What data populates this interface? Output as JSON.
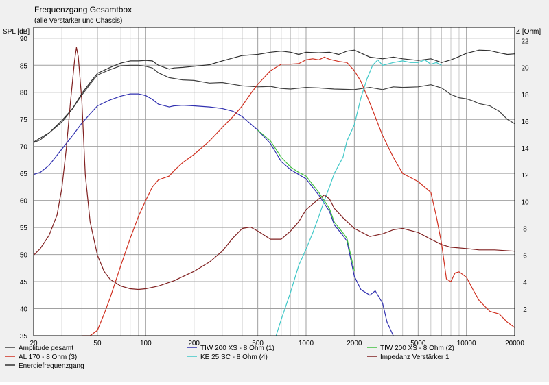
{
  "chart_data": {
    "type": "line",
    "title": "Frequenzgang Gesamtbox",
    "subtitle": "(alle Verstärker und Chassis)",
    "ylabel_left": "SPL [dB]",
    "ylabel_right": "Z [Ohm]",
    "x_scale": "log",
    "xlim": [
      20,
      20000
    ],
    "ylim_left": [
      35,
      92
    ],
    "ylim_right": [
      0,
      23
    ],
    "x_ticks": [
      20,
      50,
      100,
      200,
      500,
      1000,
      2000,
      5000,
      10000,
      20000
    ],
    "x_tick_labels": [
      "20",
      "50",
      "100",
      "200",
      "500",
      "1000",
      "2000",
      "5000",
      "10000",
      "20000"
    ],
    "y_left_ticks": [
      35,
      40,
      45,
      50,
      55,
      60,
      65,
      70,
      75,
      80,
      85,
      90
    ],
    "y_right_ticks": [
      2,
      4,
      6,
      8,
      10,
      12,
      14,
      16,
      18,
      20,
      22
    ],
    "grid": true,
    "legend_position": "bottom",
    "series": [
      {
        "name": "Amplitude gesamt",
        "color": "#404040",
        "axis": "left",
        "points": [
          [
            20,
            70.7
          ],
          [
            22,
            71.2
          ],
          [
            25,
            72.5
          ],
          [
            30,
            74.8
          ],
          [
            35,
            77
          ],
          [
            40,
            79.5
          ],
          [
            45,
            81.5
          ],
          [
            50,
            83.2
          ],
          [
            60,
            84.2
          ],
          [
            70,
            84.9
          ],
          [
            80,
            85
          ],
          [
            90,
            85
          ],
          [
            100,
            84.8
          ],
          [
            110,
            84.5
          ],
          [
            120,
            83.6
          ],
          [
            140,
            82.7
          ],
          [
            170,
            82.3
          ],
          [
            200,
            82.2
          ],
          [
            250,
            81.7
          ],
          [
            300,
            81.8
          ],
          [
            400,
            81.2
          ],
          [
            500,
            81
          ],
          [
            600,
            81.1
          ],
          [
            700,
            80.7
          ],
          [
            800,
            80.6
          ],
          [
            1000,
            80.9
          ],
          [
            1200,
            80.8
          ],
          [
            1500,
            80.6
          ],
          [
            2000,
            80.5
          ],
          [
            2500,
            80.9
          ],
          [
            3000,
            80.5
          ],
          [
            3500,
            81
          ],
          [
            4000,
            80.9
          ],
          [
            5000,
            81
          ],
          [
            6000,
            81.4
          ],
          [
            7000,
            80.8
          ],
          [
            8000,
            79.6
          ],
          [
            9000,
            79
          ],
          [
            10000,
            78.8
          ],
          [
            11000,
            78.4
          ],
          [
            12000,
            77.9
          ],
          [
            14000,
            77.5
          ],
          [
            16000,
            76.5
          ],
          [
            18000,
            75
          ],
          [
            20000,
            74.2
          ]
        ]
      },
      {
        "name": "TIW 200 XS - 8 Ohm (1)",
        "color": "#3030b0",
        "axis": "left",
        "points": [
          [
            20,
            64.8
          ],
          [
            22,
            65.2
          ],
          [
            25,
            66.5
          ],
          [
            30,
            69.5
          ],
          [
            35,
            72
          ],
          [
            40,
            74.3
          ],
          [
            45,
            76
          ],
          [
            50,
            77.5
          ],
          [
            60,
            78.6
          ],
          [
            70,
            79.3
          ],
          [
            80,
            79.7
          ],
          [
            90,
            79.7
          ],
          [
            100,
            79.4
          ],
          [
            110,
            78.7
          ],
          [
            120,
            77.8
          ],
          [
            140,
            77.3
          ],
          [
            150,
            77.5
          ],
          [
            170,
            77.6
          ],
          [
            200,
            77.5
          ],
          [
            250,
            77.3
          ],
          [
            300,
            77
          ],
          [
            350,
            76.5
          ],
          [
            400,
            75.5
          ],
          [
            500,
            73
          ],
          [
            600,
            70.5
          ],
          [
            700,
            67.2
          ],
          [
            800,
            65.7
          ],
          [
            900,
            64.8
          ],
          [
            1000,
            64
          ],
          [
            1200,
            61
          ],
          [
            1400,
            58
          ],
          [
            1500,
            55.5
          ],
          [
            1700,
            53.5
          ],
          [
            1800,
            52.5
          ],
          [
            2000,
            46
          ],
          [
            2200,
            43.5
          ],
          [
            2500,
            42.5
          ],
          [
            2700,
            43.3
          ],
          [
            3000,
            41
          ],
          [
            3200,
            37.5
          ],
          [
            3500,
            35
          ]
        ]
      },
      {
        "name": "AL 170 - 8 Ohm (3)",
        "color": "#d03020",
        "axis": "left",
        "points": [
          [
            40,
            35
          ],
          [
            45,
            35
          ],
          [
            50,
            36
          ],
          [
            55,
            39
          ],
          [
            60,
            42
          ],
          [
            70,
            48
          ],
          [
            80,
            53
          ],
          [
            90,
            57
          ],
          [
            100,
            60
          ],
          [
            110,
            62.5
          ],
          [
            120,
            63.8
          ],
          [
            140,
            64.5
          ],
          [
            150,
            65.5
          ],
          [
            170,
            67
          ],
          [
            200,
            68.5
          ],
          [
            250,
            71
          ],
          [
            300,
            73.5
          ],
          [
            350,
            75.5
          ],
          [
            400,
            77.5
          ],
          [
            450,
            79.7
          ],
          [
            500,
            81.5
          ],
          [
            600,
            84
          ],
          [
            700,
            85.2
          ],
          [
            800,
            85.2
          ],
          [
            900,
            85.3
          ],
          [
            1000,
            86
          ],
          [
            1100,
            86.2
          ],
          [
            1200,
            86
          ],
          [
            1300,
            86.5
          ],
          [
            1400,
            86.1
          ],
          [
            1600,
            85.7
          ],
          [
            1800,
            85.5
          ],
          [
            2000,
            84
          ],
          [
            2200,
            82
          ],
          [
            2500,
            78
          ],
          [
            3000,
            72
          ],
          [
            3500,
            68
          ],
          [
            4000,
            65
          ],
          [
            5000,
            63.5
          ],
          [
            6000,
            61.5
          ],
          [
            6500,
            57
          ],
          [
            7000,
            52
          ],
          [
            7500,
            45.5
          ],
          [
            8000,
            45
          ],
          [
            8500,
            46.6
          ],
          [
            9000,
            46.8
          ],
          [
            10000,
            45.8
          ],
          [
            11000,
            43.5
          ],
          [
            12000,
            41.5
          ],
          [
            14000,
            39.5
          ],
          [
            16000,
            39
          ],
          [
            18000,
            37.5
          ],
          [
            20000,
            36.5
          ]
        ]
      },
      {
        "name": "KE 25 SC - 8 Ohm   (4)",
        "color": "#40c8c8",
        "axis": "left",
        "points": [
          [
            650,
            35
          ],
          [
            700,
            38
          ],
          [
            800,
            43
          ],
          [
            900,
            48
          ],
          [
            1000,
            51
          ],
          [
            1100,
            54
          ],
          [
            1200,
            57
          ],
          [
            1300,
            60
          ],
          [
            1400,
            62.5
          ],
          [
            1500,
            65
          ],
          [
            1700,
            68
          ],
          [
            1800,
            71
          ],
          [
            2000,
            74
          ],
          [
            2200,
            79
          ],
          [
            2400,
            82.5
          ],
          [
            2600,
            85
          ],
          [
            2800,
            86
          ],
          [
            3000,
            85
          ],
          [
            3500,
            85.5
          ],
          [
            4000,
            85.8
          ],
          [
            4500,
            85.5
          ],
          [
            5000,
            85.5
          ],
          [
            5500,
            86
          ],
          [
            6000,
            85.2
          ],
          [
            6500,
            85.5
          ],
          [
            7000,
            85
          ]
        ]
      },
      {
        "name": "TIW 200 XS - 8 Ohm (2)",
        "color": "#40c040",
        "axis": "left",
        "points": [
          [
            500,
            73
          ],
          [
            600,
            71
          ],
          [
            700,
            68
          ],
          [
            800,
            66.2
          ],
          [
            900,
            65.2
          ],
          [
            1000,
            64.5
          ],
          [
            1200,
            61.5
          ],
          [
            1400,
            58.5
          ],
          [
            1500,
            56
          ],
          [
            1700,
            54
          ],
          [
            1800,
            53
          ],
          [
            2000,
            47
          ]
        ]
      },
      {
        "name": "Impedanz Verstärker 1",
        "color": "#802020",
        "axis": "right",
        "points": [
          [
            20,
            6
          ],
          [
            22,
            6.5
          ],
          [
            25,
            7.5
          ],
          [
            28,
            9
          ],
          [
            30,
            11
          ],
          [
            32,
            14
          ],
          [
            34,
            17.5
          ],
          [
            36,
            20.5
          ],
          [
            37,
            21.5
          ],
          [
            38,
            20.8
          ],
          [
            40,
            17.5
          ],
          [
            42,
            12
          ],
          [
            45,
            8.5
          ],
          [
            50,
            6
          ],
          [
            55,
            4.8
          ],
          [
            60,
            4.2
          ],
          [
            70,
            3.7
          ],
          [
            80,
            3.5
          ],
          [
            90,
            3.45
          ],
          [
            100,
            3.5
          ],
          [
            120,
            3.7
          ],
          [
            150,
            4.1
          ],
          [
            200,
            4.8
          ],
          [
            250,
            5.5
          ],
          [
            300,
            6.3
          ],
          [
            350,
            7.3
          ],
          [
            400,
            8
          ],
          [
            450,
            8.1
          ],
          [
            500,
            7.8
          ],
          [
            600,
            7.2
          ],
          [
            700,
            7.2
          ],
          [
            800,
            7.8
          ],
          [
            900,
            8.5
          ],
          [
            1000,
            9.4
          ],
          [
            1200,
            10.2
          ],
          [
            1300,
            10.5
          ],
          [
            1400,
            10.2
          ],
          [
            1500,
            9.5
          ],
          [
            1700,
            8.8
          ],
          [
            2000,
            8
          ],
          [
            2500,
            7.4
          ],
          [
            3000,
            7.6
          ],
          [
            3500,
            7.9
          ],
          [
            4000,
            8
          ],
          [
            5000,
            7.7
          ],
          [
            6000,
            7.2
          ],
          [
            7000,
            6.8
          ],
          [
            8000,
            6.6
          ],
          [
            10000,
            6.5
          ],
          [
            12000,
            6.4
          ],
          [
            15000,
            6.4
          ],
          [
            20000,
            6.3
          ]
        ]
      },
      {
        "name": "Energiefrequenzgang",
        "color": "#303030",
        "axis": "left",
        "points": [
          [
            20,
            70.8
          ],
          [
            25,
            72.5
          ],
          [
            30,
            74.5
          ],
          [
            35,
            77
          ],
          [
            40,
            79.8
          ],
          [
            45,
            81.8
          ],
          [
            50,
            83.5
          ],
          [
            60,
            84.6
          ],
          [
            70,
            85.4
          ],
          [
            80,
            85.8
          ],
          [
            90,
            85.8
          ],
          [
            100,
            85.9
          ],
          [
            110,
            85.8
          ],
          [
            120,
            85
          ],
          [
            140,
            84.3
          ],
          [
            150,
            84.5
          ],
          [
            170,
            84.6
          ],
          [
            200,
            84.8
          ],
          [
            250,
            85.1
          ],
          [
            300,
            85.8
          ],
          [
            400,
            86.8
          ],
          [
            500,
            87
          ],
          [
            600,
            87.4
          ],
          [
            700,
            87.6
          ],
          [
            800,
            87.4
          ],
          [
            900,
            87
          ],
          [
            1000,
            87.4
          ],
          [
            1200,
            87.3
          ],
          [
            1400,
            87.4
          ],
          [
            1600,
            87
          ],
          [
            1800,
            87.6
          ],
          [
            2000,
            87.8
          ],
          [
            2500,
            86.5
          ],
          [
            3000,
            86.2
          ],
          [
            3500,
            86.5
          ],
          [
            4000,
            86.2
          ],
          [
            5000,
            85.9
          ],
          [
            6000,
            86.2
          ],
          [
            7000,
            85.5
          ],
          [
            8000,
            86
          ],
          [
            9000,
            86.6
          ],
          [
            10000,
            87.2
          ],
          [
            12000,
            87.8
          ],
          [
            14000,
            87.7
          ],
          [
            16000,
            87.3
          ],
          [
            18000,
            87
          ],
          [
            20000,
            87.1
          ]
        ]
      }
    ]
  },
  "legend": [
    {
      "name": "Amplitude gesamt",
      "color": "#404040"
    },
    {
      "name": "TIW 200 XS - 8 Ohm (1)",
      "color": "#3030b0"
    },
    {
      "name": "TIW 200 XS - 8 Ohm (2)",
      "color": "#40c040"
    },
    {
      "name": "AL 170 - 8 Ohm (3)",
      "color": "#d03020"
    },
    {
      "name": "KE 25 SC - 8 Ohm   (4)",
      "color": "#40c8c8"
    },
    {
      "name": "Impedanz Verstärker 1",
      "color": "#802020"
    },
    {
      "name": "Energiefrequenzgang",
      "color": "#303030"
    }
  ]
}
